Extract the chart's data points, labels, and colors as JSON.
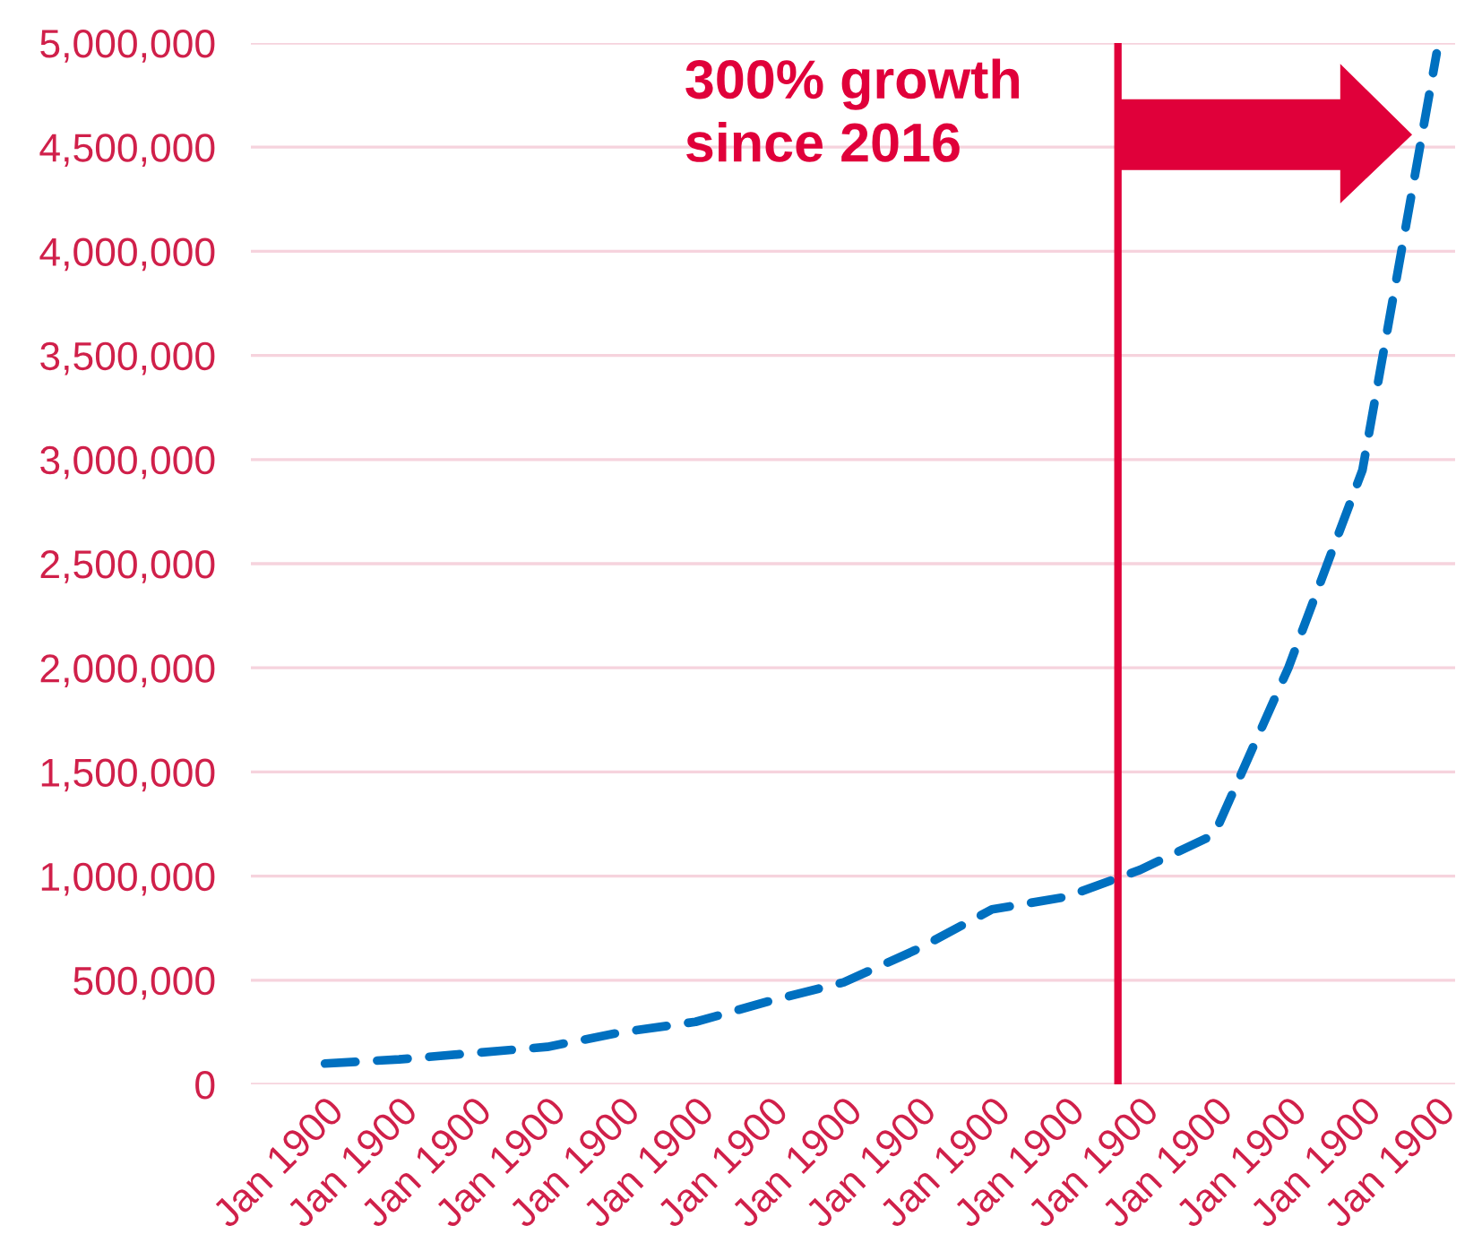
{
  "chart_data": {
    "type": "line",
    "categories": [
      "Jan 1900",
      "Jan 1900",
      "Jan 1900",
      "Jan 1900",
      "Jan 1900",
      "Jan 1900",
      "Jan 1900",
      "Jan 1900",
      "Jan 1900",
      "Jan 1900",
      "Jan 1900",
      "Jan 1900",
      "Jan 1900",
      "Jan 1900",
      "Jan 1900",
      "Jan 1900"
    ],
    "series": [
      {
        "color": "#0070c0",
        "values": [
          100000,
          120000,
          150000,
          180000,
          250000,
          300000,
          400000,
          490000,
          650000,
          840000,
          900000,
          1030000,
          1200000,
          2000000,
          2950000,
          4950000
        ]
      }
    ],
    "line_style": "dashed",
    "marker": "none",
    "grid": "y",
    "legend": false,
    "ylim": [
      0,
      5000000
    ],
    "yticks": [
      0,
      {
        "value": 500000,
        "label": "500,000"
      },
      {
        "value": 1000000,
        "label": "1,000,000"
      },
      {
        "value": 1500000,
        "label": "1,500,000"
      },
      {
        "value": 2000000,
        "label": "2,000,000"
      },
      {
        "value": 2500000,
        "label": "2,500,000"
      },
      {
        "value": 3000000,
        "label": "3,000,000"
      },
      {
        "value": 3500000,
        "label": "3,500,000"
      },
      {
        "value": 4000000,
        "label": "4,000,000"
      },
      {
        "value": 4500000,
        "label": "4,500,000"
      },
      {
        "value": 5000000,
        "label": "5,000,000"
      }
    ],
    "annotations": [
      "300% growth\nsince 2016"
    ]
  }
}
